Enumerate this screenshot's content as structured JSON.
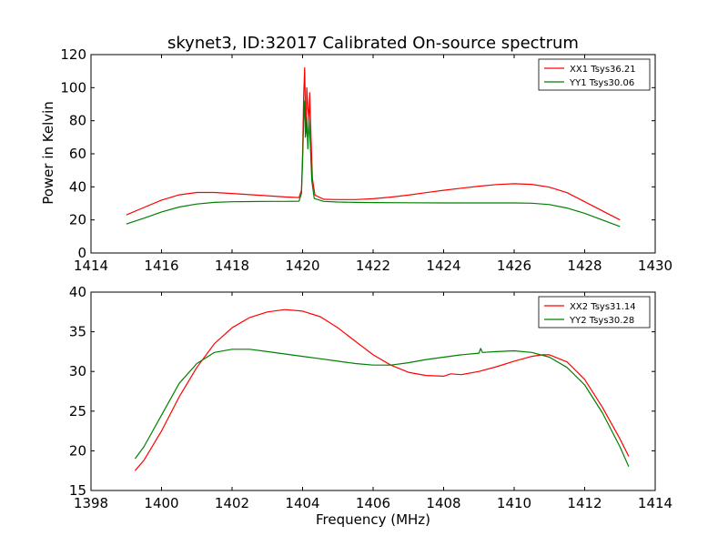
{
  "figure": {
    "title": "skynet3, ID:32017 Calibrated On-source spectrum",
    "ylabel": "Power in Kelvin",
    "xlabel": "Frequency (MHz)"
  },
  "chart_data": [
    {
      "type": "line",
      "title": "skynet3, ID:32017 Calibrated On-source spectrum",
      "ylabel": "Power in Kelvin",
      "xlabel": "",
      "xlim": [
        1414,
        1430
      ],
      "ylim": [
        0,
        120
      ],
      "xticks": [
        "1414",
        "1416",
        "1418",
        "1420",
        "1422",
        "1424",
        "1426",
        "1428",
        "1430"
      ],
      "yticks": [
        "0",
        "20",
        "40",
        "60",
        "80",
        "100",
        "120"
      ],
      "grid": false,
      "legend": "top-right",
      "series": [
        {
          "name": "XX1 Tsys36.21",
          "color": "#ff0000",
          "points": [
            [
              1415.0,
              23.0
            ],
            [
              1415.5,
              27.5
            ],
            [
              1416.0,
              32.0
            ],
            [
              1416.5,
              35.2
            ],
            [
              1417.0,
              36.6
            ],
            [
              1417.5,
              36.6
            ],
            [
              1418.0,
              36.0
            ],
            [
              1418.5,
              35.3
            ],
            [
              1419.0,
              34.6
            ],
            [
              1419.5,
              33.9
            ],
            [
              1419.9,
              33.5
            ],
            [
              1419.97,
              38.0
            ],
            [
              1420.0,
              60.0
            ],
            [
              1420.03,
              95.0
            ],
            [
              1420.06,
              112.0
            ],
            [
              1420.08,
              85.0
            ],
            [
              1420.1,
              75.0
            ],
            [
              1420.12,
              100.0
            ],
            [
              1420.15,
              88.0
            ],
            [
              1420.18,
              80.0
            ],
            [
              1420.2,
              97.0
            ],
            [
              1420.24,
              70.0
            ],
            [
              1420.28,
              45.0
            ],
            [
              1420.35,
              35.0
            ],
            [
              1420.6,
              32.5
            ],
            [
              1421.0,
              32.3
            ],
            [
              1421.5,
              32.3
            ],
            [
              1422.0,
              32.8
            ],
            [
              1422.5,
              33.8
            ],
            [
              1423.0,
              35.0
            ],
            [
              1423.5,
              36.5
            ],
            [
              1424.0,
              37.9
            ],
            [
              1424.5,
              39.2
            ],
            [
              1425.0,
              40.4
            ],
            [
              1425.5,
              41.4
            ],
            [
              1426.0,
              41.9
            ],
            [
              1426.5,
              41.5
            ],
            [
              1427.0,
              39.8
            ],
            [
              1427.5,
              36.5
            ],
            [
              1428.0,
              31.0
            ],
            [
              1428.5,
              25.5
            ],
            [
              1429.0,
              20.0
            ]
          ]
        },
        {
          "name": "YY1 Tsys30.06",
          "color": "#008000",
          "points": [
            [
              1415.0,
              17.5
            ],
            [
              1415.5,
              21.0
            ],
            [
              1416.0,
              24.8
            ],
            [
              1416.5,
              27.8
            ],
            [
              1417.0,
              29.6
            ],
            [
              1417.5,
              30.6
            ],
            [
              1418.0,
              31.0
            ],
            [
              1418.5,
              31.1
            ],
            [
              1419.0,
              31.2
            ],
            [
              1419.5,
              31.2
            ],
            [
              1419.9,
              31.3
            ],
            [
              1419.97,
              36.0
            ],
            [
              1420.0,
              55.0
            ],
            [
              1420.03,
              80.0
            ],
            [
              1420.06,
              92.0
            ],
            [
              1420.08,
              70.0
            ],
            [
              1420.1,
              73.0
            ],
            [
              1420.12,
              82.0
            ],
            [
              1420.15,
              63.0
            ],
            [
              1420.18,
              81.0
            ],
            [
              1420.22,
              66.0
            ],
            [
              1420.26,
              44.0
            ],
            [
              1420.33,
              33.0
            ],
            [
              1420.6,
              31.2
            ],
            [
              1421.0,
              30.8
            ],
            [
              1421.5,
              30.6
            ],
            [
              1422.0,
              30.5
            ],
            [
              1423.0,
              30.4
            ],
            [
              1424.0,
              30.3
            ],
            [
              1425.0,
              30.3
            ],
            [
              1426.0,
              30.3
            ],
            [
              1426.5,
              30.1
            ],
            [
              1427.0,
              29.3
            ],
            [
              1427.5,
              27.2
            ],
            [
              1428.0,
              24.0
            ],
            [
              1428.5,
              20.0
            ],
            [
              1429.0,
              16.0
            ]
          ]
        }
      ]
    },
    {
      "type": "line",
      "title": "",
      "xlabel": "Frequency (MHz)",
      "ylabel": "",
      "xlim": [
        1398,
        1414
      ],
      "ylim": [
        15,
        40
      ],
      "xticks": [
        "1398",
        "1400",
        "1402",
        "1404",
        "1406",
        "1408",
        "1410",
        "1412",
        "1414"
      ],
      "yticks": [
        "15",
        "20",
        "25",
        "30",
        "35",
        "40"
      ],
      "grid": false,
      "legend": "top-right",
      "series": [
        {
          "name": "XX2 Tsys31.14",
          "color": "#ff0000",
          "points": [
            [
              1399.25,
              17.5
            ],
            [
              1399.5,
              18.8
            ],
            [
              1400.0,
              22.5
            ],
            [
              1400.5,
              26.8
            ],
            [
              1401.0,
              30.5
            ],
            [
              1401.5,
              33.5
            ],
            [
              1402.0,
              35.5
            ],
            [
              1402.5,
              36.8
            ],
            [
              1403.0,
              37.5
            ],
            [
              1403.5,
              37.8
            ],
            [
              1404.0,
              37.6
            ],
            [
              1404.5,
              36.9
            ],
            [
              1405.0,
              35.5
            ],
            [
              1405.5,
              33.8
            ],
            [
              1406.0,
              32.1
            ],
            [
              1406.5,
              30.8
            ],
            [
              1407.0,
              29.9
            ],
            [
              1407.5,
              29.5
            ],
            [
              1408.0,
              29.4
            ],
            [
              1408.2,
              29.7
            ],
            [
              1408.5,
              29.6
            ],
            [
              1409.0,
              30.0
            ],
            [
              1409.5,
              30.6
            ],
            [
              1410.0,
              31.3
            ],
            [
              1410.5,
              31.9
            ],
            [
              1410.8,
              32.1
            ],
            [
              1411.0,
              32.1
            ],
            [
              1411.5,
              31.2
            ],
            [
              1412.0,
              29.0
            ],
            [
              1412.5,
              25.5
            ],
            [
              1413.0,
              21.5
            ],
            [
              1413.25,
              19.3
            ]
          ]
        },
        {
          "name": "YY2 Tsys30.28",
          "color": "#008000",
          "points": [
            [
              1399.25,
              19.0
            ],
            [
              1399.5,
              20.5
            ],
            [
              1400.0,
              24.5
            ],
            [
              1400.5,
              28.5
            ],
            [
              1401.0,
              31.0
            ],
            [
              1401.5,
              32.4
            ],
            [
              1402.0,
              32.8
            ],
            [
              1402.5,
              32.8
            ],
            [
              1403.0,
              32.5
            ],
            [
              1403.5,
              32.2
            ],
            [
              1404.0,
              31.9
            ],
            [
              1404.5,
              31.6
            ],
            [
              1405.0,
              31.3
            ],
            [
              1405.5,
              31.0
            ],
            [
              1406.0,
              30.8
            ],
            [
              1406.5,
              30.8
            ],
            [
              1407.0,
              31.1
            ],
            [
              1407.5,
              31.5
            ],
            [
              1408.0,
              31.8
            ],
            [
              1408.5,
              32.1
            ],
            [
              1409.0,
              32.3
            ],
            [
              1409.05,
              32.9
            ],
            [
              1409.1,
              32.4
            ],
            [
              1409.5,
              32.5
            ],
            [
              1410.0,
              32.6
            ],
            [
              1410.5,
              32.4
            ],
            [
              1411.0,
              31.8
            ],
            [
              1411.5,
              30.5
            ],
            [
              1412.0,
              28.3
            ],
            [
              1412.5,
              24.8
            ],
            [
              1413.0,
              20.5
            ],
            [
              1413.25,
              18.0
            ]
          ]
        }
      ]
    }
  ]
}
